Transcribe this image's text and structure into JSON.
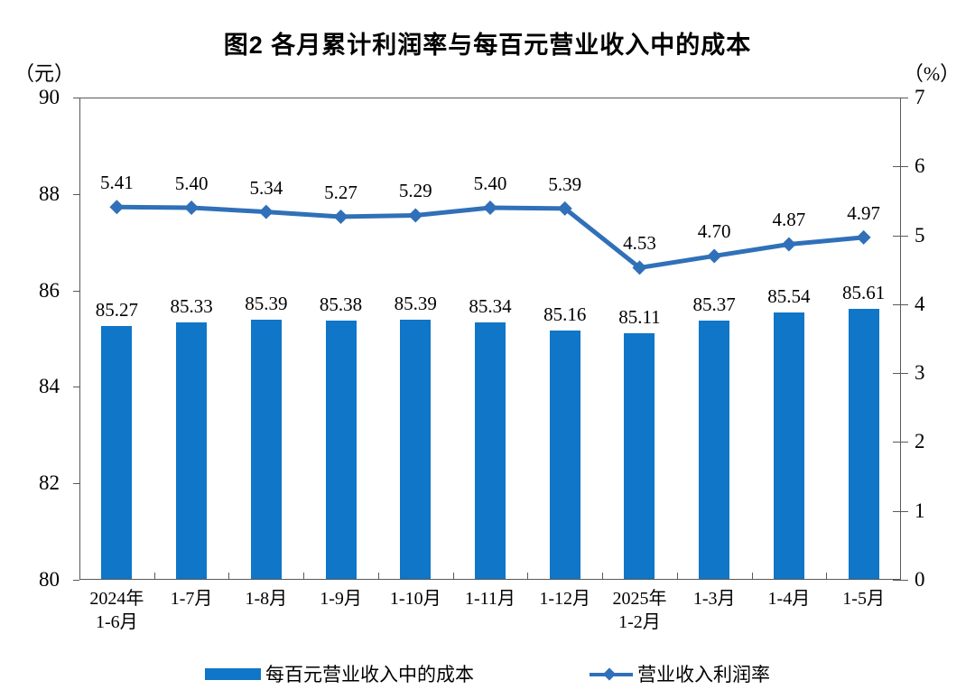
{
  "chart_data": {
    "type": "bar+line combo",
    "title": "图2 各月累计利润率与每百元营业收入中的成本",
    "left_axis": {
      "unit": "（元）",
      "min": 80,
      "max": 90,
      "ticks": [
        "90",
        "88",
        "86",
        "84",
        "82",
        "80"
      ]
    },
    "right_axis": {
      "unit": "（%）",
      "min": 0,
      "max": 7,
      "ticks": [
        "7",
        "6",
        "5",
        "4",
        "3",
        "2",
        "1",
        "0"
      ]
    },
    "categories": [
      "2024年\n1-6月",
      "1-7月",
      "1-8月",
      "1-9月",
      "1-10月",
      "1-11月",
      "1-12月",
      "2025年\n1-2月",
      "1-3月",
      "1-4月",
      "1-5月"
    ],
    "series": [
      {
        "name": "每百元营业收入中的成本",
        "type": "bar",
        "axis": "left",
        "color": "#0F76C8",
        "values": [
          85.27,
          85.33,
          85.39,
          85.38,
          85.39,
          85.34,
          85.16,
          85.11,
          85.37,
          85.54,
          85.61
        ]
      },
      {
        "name": "营业收入利润率",
        "type": "line",
        "axis": "right",
        "color": "#3070B8",
        "marker": "diamond",
        "values": [
          5.41,
          5.4,
          5.34,
          5.27,
          5.29,
          5.4,
          5.39,
          4.53,
          4.7,
          4.87,
          4.97
        ]
      }
    ],
    "legend_position": "bottom",
    "grid": "off",
    "data_labels": "on"
  }
}
